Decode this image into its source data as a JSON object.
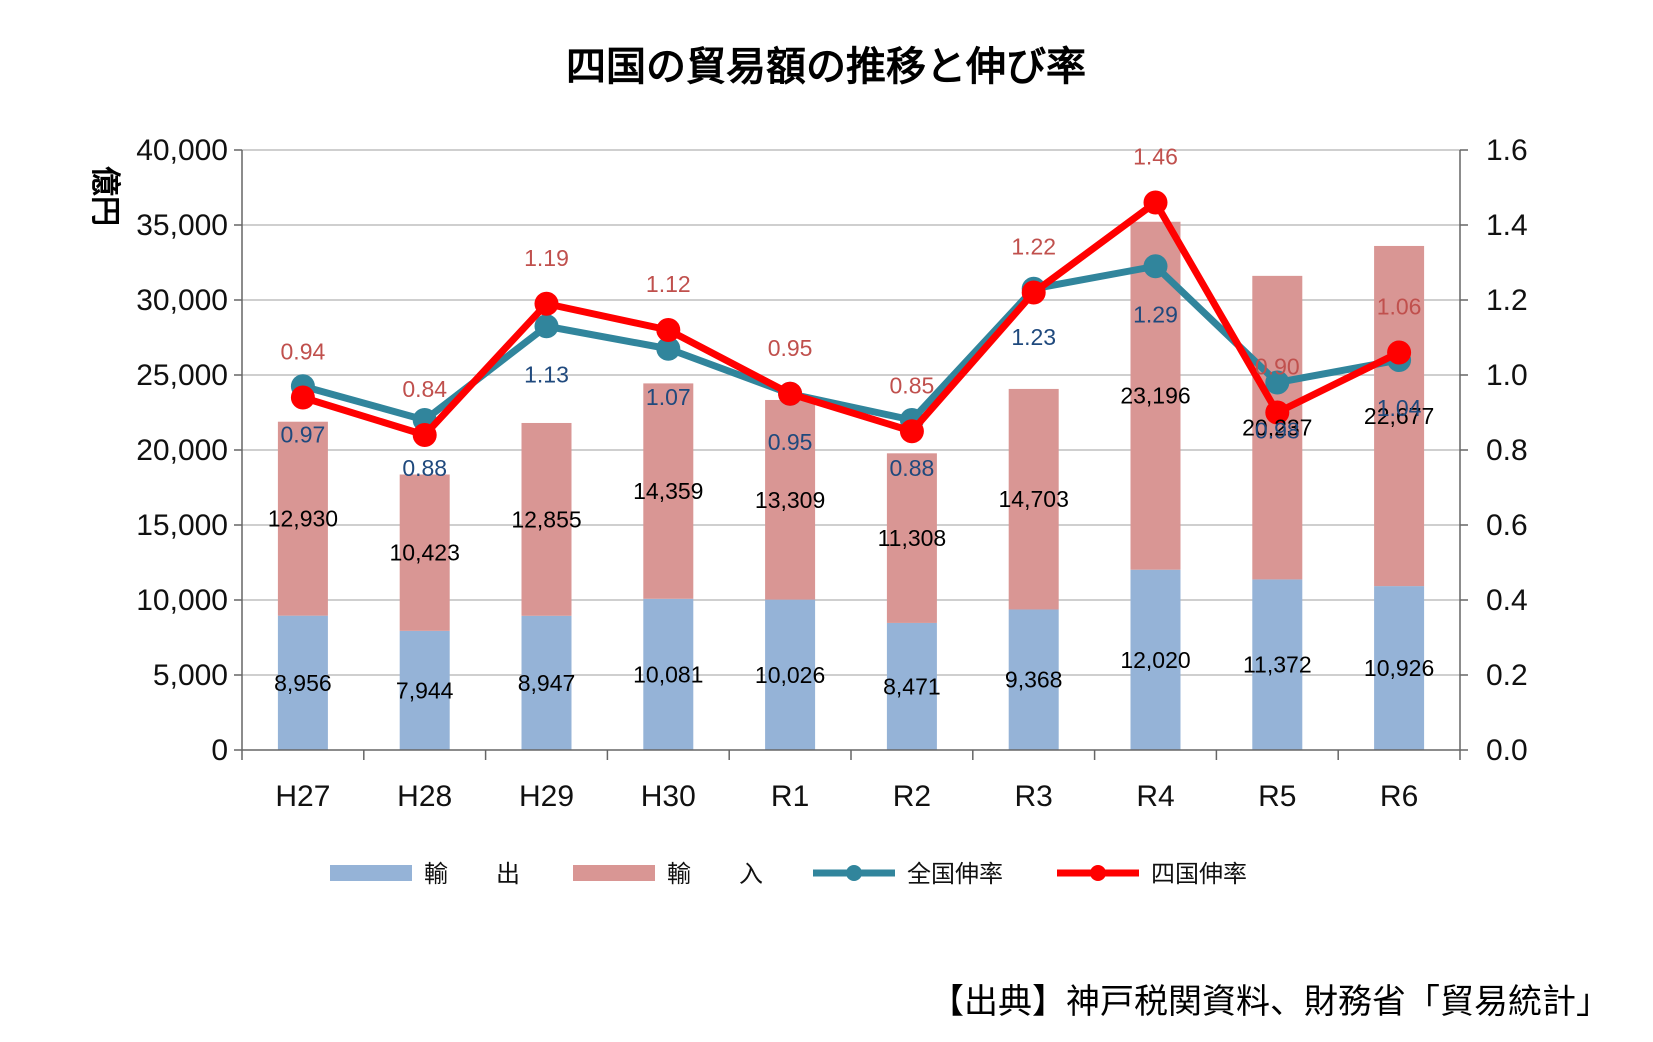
{
  "title": "四国の貿易額の推移と伸び率",
  "source": "【出典】神戸税関資料、財務省「貿易統計」",
  "colors": {
    "export": "#95b3d7",
    "import": "#d99694",
    "national_rate": "#31859c",
    "shikoku_rate": "#ff0000",
    "label_national": "#1f497d",
    "label_shikoku": "#c0504d",
    "grid": "#bfbfbf"
  },
  "chart_data": {
    "type": "bar",
    "title": "四国の貿易額の推移と伸び率",
    "ylabel": "億円",
    "y2label": "",
    "ylim": [
      0,
      40000
    ],
    "y2lim": [
      0,
      1.6
    ],
    "yticks": [
      "0",
      "5,000",
      "10,000",
      "15,000",
      "20,000",
      "25,000",
      "30,000",
      "35,000",
      "40,000"
    ],
    "y2ticks": [
      "0.0",
      "0.2",
      "0.4",
      "0.6",
      "0.8",
      "1.0",
      "1.2",
      "1.4",
      "1.6"
    ],
    "grid": true,
    "legend": "bottom",
    "categories": [
      "H27",
      "H28",
      "H29",
      "H30",
      "R1",
      "R2",
      "R3",
      "R4",
      "R5",
      "R6"
    ],
    "series": [
      {
        "name": "輸　　出",
        "type": "bar",
        "stack": "trade",
        "values": [
          8956,
          7944,
          8947,
          10081,
          10026,
          8471,
          9368,
          12020,
          11372,
          10926
        ],
        "labels": [
          "8,956",
          "7,944",
          "8,947",
          "10,081",
          "10,026",
          "8,471",
          "9,368",
          "12,020",
          "11,372",
          "10,926"
        ]
      },
      {
        "name": "輸　　入",
        "type": "bar",
        "stack": "trade",
        "values": [
          12930,
          10423,
          12855,
          14359,
          13309,
          11308,
          14703,
          23196,
          20237,
          22677
        ],
        "labels": [
          "12,930",
          "10,423",
          "12,855",
          "14,359",
          "13,309",
          "11,308",
          "14,703",
          "23,196",
          "20,237",
          "22,677"
        ]
      },
      {
        "name": "全国伸率",
        "type": "line",
        "axis": "secondary",
        "values": [
          0.97,
          0.88,
          1.13,
          1.07,
          0.95,
          0.88,
          1.23,
          1.29,
          0.98,
          1.04
        ],
        "labels": [
          "0.97",
          "0.88",
          "1.13",
          "1.07",
          "0.95",
          "0.88",
          "1.23",
          "1.29",
          "0.98",
          "1.04"
        ]
      },
      {
        "name": "四国伸率",
        "type": "line",
        "axis": "secondary",
        "values": [
          0.94,
          0.84,
          1.19,
          1.12,
          0.95,
          0.85,
          1.22,
          1.46,
          0.9,
          1.06
        ],
        "labels": [
          "0.94",
          "0.84",
          "1.19",
          "1.12",
          "0.95",
          "0.85",
          "1.22",
          "1.46",
          "0.90",
          "1.06"
        ]
      }
    ]
  }
}
